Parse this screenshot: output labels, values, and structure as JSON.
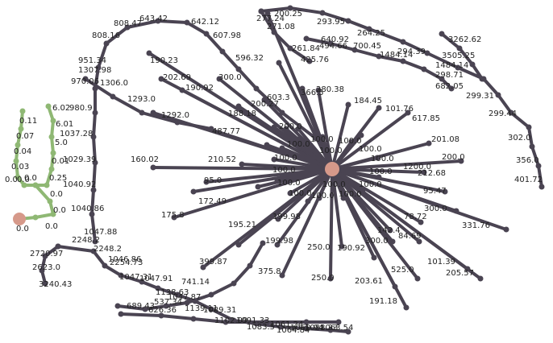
{
  "colors": {
    "edge": "#4a4452",
    "node": "#4a4452",
    "green": "#8fb874",
    "root": "#d6998a",
    "label": "#222222"
  },
  "labels": {
    "t_c1": "200.25",
    "t_c2": "277.24",
    "t_c3": "271.08",
    "t_c4": "293.95",
    "t_c5": "264.25",
    "t_c6": "640.92",
    "t_c7": "700.45",
    "t_c8": "3262.62",
    "t_c9": "1484.14",
    "t_c10": "294.39",
    "t_c11": "3505.25",
    "t_c12": "1484.14",
    "t_c13": "298.71",
    "t_c14": "682.05",
    "t_c15": "299.31",
    "t_c16": "299.44",
    "t_c17": "302.0",
    "t_c18": "356.0",
    "t_c19": "401.72",
    "t_c20": "261.84",
    "t_c21": "494.66",
    "t_c22": "425.76",
    "t_a1": "643.42",
    "t_a2": "808.47",
    "t_a3": "642.12",
    "t_a4": "808.16",
    "t_a5": "607.98",
    "t_a6": "596.32",
    "t_a7": "951.34",
    "t_a8": "1307.98",
    "t_a9": "970.06",
    "t_a10": "1306.0",
    "t_a11": "1293.0",
    "t_a12": "190.23",
    "t_a13": "202.69",
    "t_a14": "190.92",
    "t_a15": "300.0",
    "t_a16": "603.3",
    "t_a17": "200.27",
    "t_a18": "188.18",
    "t_a19": "1292.0",
    "t_a20": "487.77",
    "t_a21": "200.0",
    "t_a22": "366.5",
    "t_a23": "280.38",
    "t_a24": "184.45",
    "t_a25": "101.76",
    "t_a26": "617.85",
    "t_a27": "201.08",
    "t_a28": "200.0",
    "t_a29": "1200.0",
    "t_a30": "212.68",
    "t_a31": "95.47",
    "t_a32": "300.0",
    "t_a33": "331.76",
    "t_a34": "78.72",
    "t_a35": "84.69",
    "t_a36": "142.4",
    "t_a37": "300.0",
    "t_a38": "101.39",
    "t_a39": "205.57",
    "t_a40": "525.0",
    "t_a41": "190.92",
    "t_a42": "203.61",
    "t_a43": "191.18",
    "t_a44": "250.0",
    "t_a45": "250.0",
    "t_a46": "375.8",
    "t_a47": "199.98",
    "t_a48": "199.98",
    "t_a49": "195.21",
    "t_a50": "399.87",
    "t_a51": "175.8",
    "t_a52": "172.49",
    "t_a53": "95.0",
    "t_a54": "160.02",
    "t_a55": "210.52",
    "t_a56": "100.0",
    "t_a57": "100.0",
    "t_a58": "100.0",
    "t_a59": "100.0",
    "t_a60": "100.0",
    "t_a61": "100.0",
    "t_a62": "100.0",
    "t_a63": "100.0",
    "t_a64": "100.0",
    "t_a65": "100.0",
    "t_a66": "100.0",
    "t_a67": "100.0",
    "t_a68": "100.0",
    "t_a69": "100.0",
    "t_a70": "100.0",
    "t_b1": "1040.86",
    "t_b2": "1047.88",
    "t_b3": "2248.2",
    "t_b4": "2248.2",
    "t_b5": "2720.97",
    "t_b6": "2623.0",
    "t_b7": "3240.43",
    "t_b8": "1046.86",
    "t_b9": "2254.73",
    "t_b10": "1047.31",
    "t_b11": "1047.91",
    "t_b12": "1138.63",
    "t_b13": "1047.87",
    "t_b14": "741.14",
    "t_b15": "537.34",
    "t_b16": "689.43",
    "t_b17": "626.36",
    "t_b18": "1139.11",
    "t_b19": "1089.31",
    "t_b20": "1102.09",
    "t_b21": "1091.33",
    "t_b22": "1083.5",
    "t_b23": "1061.24",
    "t_b24": "1064.84",
    "t_b25": "1060.94",
    "t_b26": "1088.33",
    "t_b27": "1063.54",
    "t_b28": "1040.92",
    "t_b29": "1029.39",
    "t_b30": "1037.28",
    "t_b31": "980.9",
    "t_g1": "6.02",
    "t_g2": "0.11",
    "t_g3": "6.01",
    "t_g4": "0.07",
    "t_g5": "5.0",
    "t_g6": "0.04",
    "t_g7": "0.03",
    "t_g8": "0.01",
    "t_g9": "0.0",
    "t_g10": "0.0",
    "t_g11": "0.25",
    "t_g12": "0.0",
    "t_g13": "0.0",
    "t_g14": "0.0",
    "t_g15": "0.0",
    "t_g16": "0.0"
  }
}
